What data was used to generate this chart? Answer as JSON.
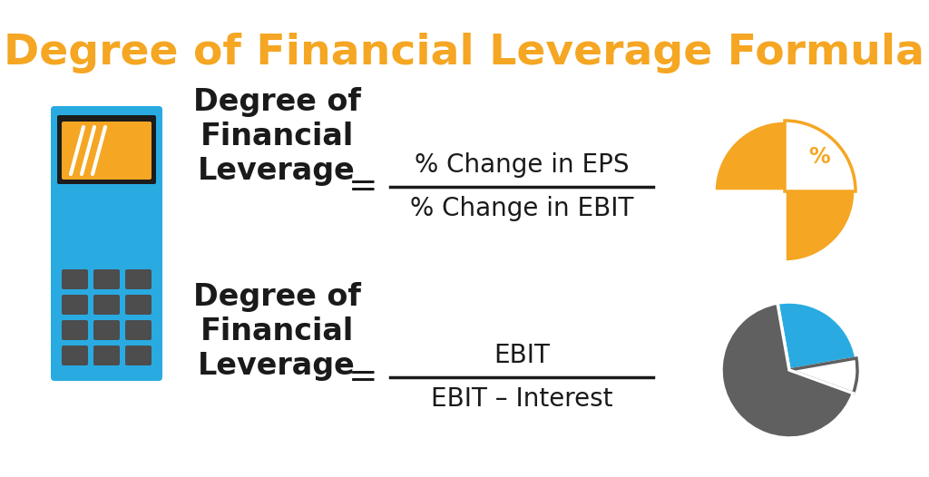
{
  "title": "Degree of Financial Leverage Formula",
  "title_color": "#F5A623",
  "title_fontsize": 34,
  "bg_color": "#FFFFFF",
  "formula1_label": "Degree of\nFinancial\nLeverage",
  "formula1_numerator": "% Change in EPS",
  "formula1_denominator": "% Change in EBIT",
  "formula2_label": "Degree of\nFinancial\nLeverage",
  "formula2_numerator": "EBIT",
  "formula2_denominator": "EBIT – Interest",
  "equals_sign": "=",
  "label_fontsize": 24,
  "formula_fontsize": 20,
  "text_color": "#1A1A1A",
  "calculator_body_color": "#29ABE2",
  "calculator_screen_color": "#F5A623",
  "calculator_screen_dark": "#1C1C1C",
  "calculator_button_color": "#4D4D4D",
  "orange": "#F5A623",
  "blue": "#29ABE2",
  "grey": "#606060",
  "line_color": "#1A1A1A",
  "line_width": 2.0,
  "fig_w": 10.24,
  "fig_h": 5.26,
  "dpi": 100
}
